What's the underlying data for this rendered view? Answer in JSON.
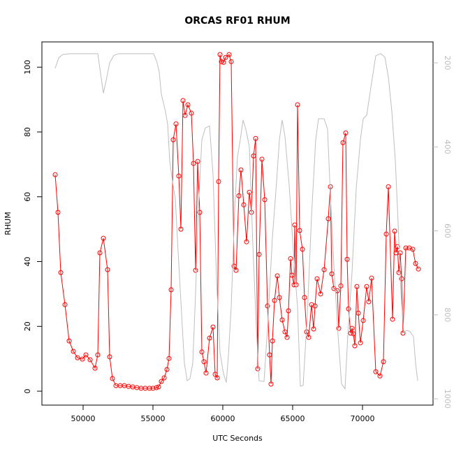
{
  "chart_data": {
    "type": "line",
    "title": "ORCAS RF01 RHUM",
    "x_label": "UTC Seconds",
    "y_label": "RHUM",
    "xlim": [
      47050,
      75050
    ],
    "xticks": [
      50000,
      55000,
      60000,
      65000,
      70000
    ],
    "ylim": [
      -4.3,
      107.8
    ],
    "yticks": [
      0,
      20,
      40,
      60,
      80,
      100
    ],
    "y2lim": [
      1015,
      150
    ],
    "y2ticks": [
      200,
      400,
      600,
      800,
      1000
    ],
    "y2_color": "#bebebe",
    "series": [
      {
        "color": "#ff0000",
        "marker": "circle",
        "x": [
          48000,
          48200,
          48400,
          48700,
          49000,
          49300,
          49600,
          49950,
          50200,
          50500,
          50850,
          51050,
          51200,
          51450,
          51750,
          51900,
          52100,
          52350,
          52650,
          52950,
          53250,
          53550,
          53850,
          54150,
          54450,
          54750,
          55000,
          55250,
          55400,
          55600,
          55800,
          56000,
          56150,
          56300,
          56450,
          56650,
          56850,
          57000,
          57150,
          57300,
          57500,
          57750,
          57900,
          58050,
          58200,
          58350,
          58500,
          58650,
          58800,
          59050,
          59300,
          59450,
          59600,
          59700,
          59800,
          59900,
          60050,
          60200,
          60450,
          60600,
          60800,
          60950,
          61150,
          61300,
          61500,
          61700,
          61900,
          62050,
          62200,
          62350,
          62500,
          62600,
          62800,
          63000,
          63200,
          63350,
          63450,
          63550,
          63700,
          63900,
          64050,
          64250,
          64450,
          64600,
          64700,
          64850,
          64950,
          65100,
          65150,
          65250,
          65350,
          65500,
          65700,
          65850,
          66000,
          66150,
          66350,
          66500,
          66600,
          66750,
          67000,
          67250,
          67550,
          67700,
          67800,
          67950,
          68200,
          68300,
          68450,
          68600,
          68800,
          68900,
          69000,
          69150,
          69250,
          69350,
          69450,
          69600,
          69700,
          69850,
          70050,
          70300,
          70450,
          70650,
          70950,
          71250,
          71500,
          71700,
          71850,
          72150,
          72300,
          72400,
          72500,
          72600,
          72700,
          72800,
          72900,
          73100,
          73350,
          73600,
          73800,
          74000
        ],
        "values": [
          66.8,
          55.2,
          36.6,
          26.7,
          15.5,
          12.3,
          10.3,
          9.9,
          11.2,
          9.7,
          7.1,
          11.2,
          42.7,
          47.2,
          37.5,
          10.6,
          3.9,
          1.7,
          1.7,
          1.7,
          1.5,
          1.3,
          1.1,
          0.9,
          0.9,
          0.9,
          0.9,
          1.1,
          1.3,
          3.0,
          4.1,
          6.7,
          10.1,
          31.3,
          77.6,
          82.5,
          66.4,
          50.0,
          89.7,
          85.1,
          88.4,
          85.8,
          70.3,
          37.3,
          70.9,
          55.2,
          12.1,
          9.1,
          5.6,
          16.4,
          19.8,
          5.2,
          4.1,
          64.7,
          103.9,
          101.7,
          101.5,
          103.0,
          103.9,
          101.7,
          38.6,
          37.3,
          60.3,
          68.3,
          57.5,
          46.1,
          61.4,
          55.2,
          72.6,
          78.0,
          6.9,
          42.2,
          71.6,
          59.1,
          26.3,
          11.2,
          2.2,
          15.5,
          28.0,
          35.6,
          28.9,
          22.0,
          18.3,
          16.6,
          24.8,
          40.9,
          35.8,
          32.8,
          51.3,
          32.8,
          88.4,
          49.6,
          43.8,
          28.9,
          18.3,
          16.6,
          26.7,
          19.2,
          26.3,
          34.7,
          30.0,
          37.5,
          53.2,
          63.1,
          36.2,
          31.7,
          31.0,
          19.4,
          32.5,
          76.7,
          79.7,
          40.7,
          25.4,
          17.9,
          19.4,
          17.7,
          14.0,
          32.3,
          24.1,
          14.9,
          21.8,
          32.3,
          27.6,
          34.9,
          6.0,
          4.7,
          9.1,
          48.5,
          63.1,
          22.2,
          49.4,
          42.7,
          44.6,
          36.6,
          42.7,
          34.7,
          17.9,
          44.2,
          44.2,
          43.8,
          39.4,
          37.7
        ]
      },
      {
        "color": "#bebebe",
        "axis": "y2",
        "x": [
          48000,
          48250,
          48550,
          49050,
          51050,
          51250,
          51450,
          51650,
          51900,
          52200,
          52550,
          55050,
          55300,
          55450,
          55600,
          55900,
          56050,
          56200,
          56400,
          56600,
          56800,
          57050,
          57250,
          57450,
          57650,
          57850,
          58050,
          58250,
          58500,
          58750,
          59050,
          59300,
          59550,
          59800,
          60050,
          60250,
          60400,
          60600,
          60850,
          61050,
          61250,
          61450,
          61650,
          61900,
          62150,
          62400,
          62600,
          62950,
          63200,
          63550,
          63850,
          64050,
          64250,
          64450,
          64750,
          65050,
          65350,
          65550,
          65750,
          66050,
          66350,
          66650,
          66850,
          67250,
          67500,
          67700,
          67950,
          68250,
          68500,
          68750,
          68950,
          69250,
          69550,
          69850,
          70050,
          70300,
          70600,
          70950,
          71300,
          71600,
          71850,
          72100,
          72350,
          72550,
          72750,
          72950,
          73200,
          73400,
          73650,
          73800,
          73950
        ],
        "values": [
          213,
          188,
          180,
          178,
          178,
          225,
          272,
          242,
          200,
          182,
          178,
          178,
          200,
          222,
          275,
          316,
          346,
          433,
          483,
          524,
          649,
          799,
          915,
          957,
          952,
          915,
          749,
          549,
          383,
          355,
          350,
          466,
          715,
          890,
          940,
          961,
          898,
          782,
          549,
          424,
          383,
          336,
          358,
          400,
          632,
          832,
          957,
          959,
          832,
          616,
          483,
          383,
          336,
          375,
          491,
          649,
          782,
          970,
          968,
          799,
          566,
          383,
          333,
          333,
          358,
          516,
          682,
          848,
          965,
          976,
          848,
          699,
          499,
          383,
          333,
          325,
          258,
          183,
          178,
          186,
          233,
          316,
          433,
          582,
          749,
          840,
          837,
          840,
          852,
          915,
          957
        ]
      }
    ]
  }
}
